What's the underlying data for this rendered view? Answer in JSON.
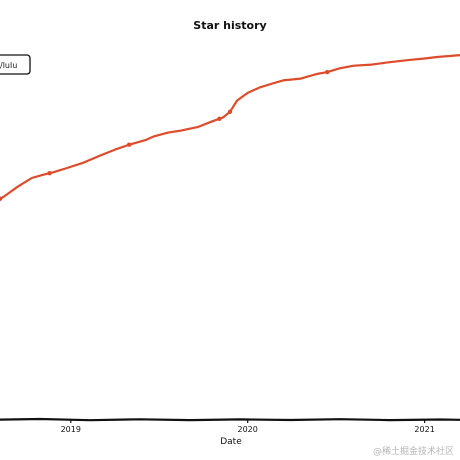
{
  "chart_data": {
    "type": "line",
    "title": "Star history",
    "xlabel": "Date",
    "ylabel": "",
    "x_tick_labels": [
      "2019",
      "2020",
      "2021"
    ],
    "xlim": [
      2018.6,
      2021.2
    ],
    "ylim": [
      0,
      1
    ],
    "grid": false,
    "legend": {
      "placement": "top-left",
      "entries": [
        "/lulu"
      ]
    },
    "line_color": "#dd4b2b",
    "series": [
      {
        "name": "/lulu",
        "x": [
          2018.6,
          2018.62,
          2018.7,
          2018.78,
          2018.84,
          2018.9,
          2018.97,
          2019.07,
          2019.16,
          2019.25,
          2019.33,
          2019.42,
          2019.47,
          2019.55,
          2019.62,
          2019.72,
          2019.8,
          2019.86,
          2019.9,
          2019.94,
          2020.0,
          2020.07,
          2020.14,
          2020.2,
          2020.3,
          2020.39,
          2020.45,
          2020.52,
          2020.6,
          2020.7,
          2020.78,
          2020.87,
          2020.93,
          2021.0,
          2021.07,
          2021.15,
          2021.2
        ],
        "y": [
          0.58,
          0.585,
          0.612,
          0.635,
          0.643,
          0.65,
          0.66,
          0.675,
          0.693,
          0.71,
          0.723,
          0.735,
          0.745,
          0.755,
          0.76,
          0.77,
          0.785,
          0.795,
          0.81,
          0.84,
          0.86,
          0.875,
          0.885,
          0.893,
          0.898,
          0.91,
          0.915,
          0.925,
          0.932,
          0.935,
          0.94,
          0.945,
          0.948,
          0.951,
          0.955,
          0.958,
          0.96
        ]
      }
    ],
    "markers_x": [
      2018.6,
      2018.88,
      2019.33,
      2019.84,
      2019.9,
      2020.45
    ]
  },
  "watermark": "@稀土掘金技术社区"
}
